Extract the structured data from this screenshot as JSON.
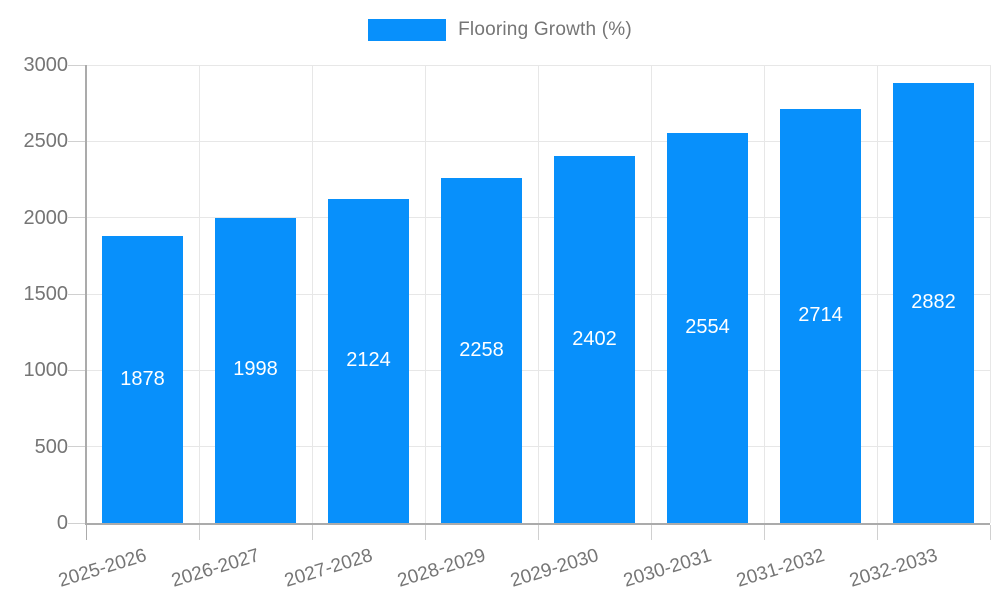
{
  "chart_data": {
    "type": "bar",
    "title": "",
    "legend": {
      "label": "Flooring Growth (%)",
      "position": "top"
    },
    "categories": [
      "2025-2026",
      "2026-2027",
      "2027-2028",
      "2028-2029",
      "2029-2030",
      "2030-2031",
      "2031-2032",
      "2032-2033"
    ],
    "series": [
      {
        "name": "Flooring Growth (%)",
        "values": [
          1878,
          1998,
          2124,
          2258,
          2402,
          2554,
          2714,
          2882
        ]
      }
    ],
    "ylim": [
      0,
      3000
    ],
    "yticks": [
      0,
      500,
      1000,
      1500,
      2000,
      2500,
      3000
    ],
    "xlabel": "",
    "ylabel": "",
    "grid": true,
    "value_labels_shown": true,
    "colors": {
      "bar": "#0890fb",
      "grid": "#e7e7e7",
      "axis": "#ababab",
      "tick": "#d0d0d0",
      "text": "#757575",
      "value_label": "#ffffff"
    }
  }
}
